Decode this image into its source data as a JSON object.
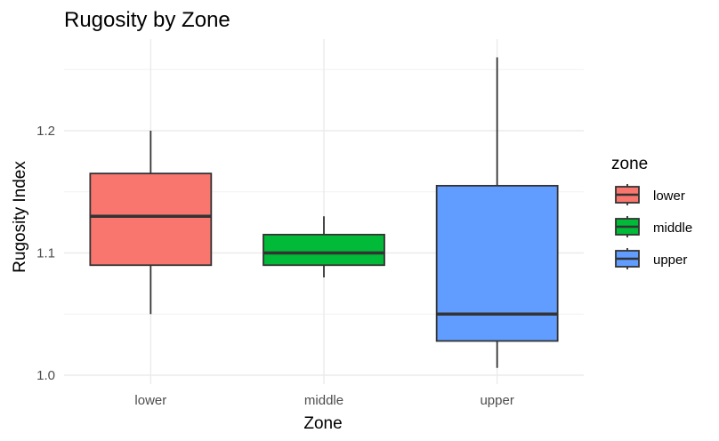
{
  "chart_data": {
    "type": "boxplot",
    "title": "Rugosity by Zone",
    "xlabel": "Zone",
    "ylabel": "Rugosity Index",
    "ylim": [
      1.0,
      1.26
    ],
    "yticks": [
      1.0,
      1.1,
      1.2
    ],
    "yticks_minor": [
      1.05,
      1.15,
      1.25
    ],
    "categories": [
      "lower",
      "middle",
      "upper"
    ],
    "boxes": [
      {
        "name": "lower",
        "whisker_low": 1.05,
        "q1": 1.09,
        "median": 1.13,
        "q3": 1.165,
        "whisker_high": 1.2,
        "color": "#F8766D"
      },
      {
        "name": "middle",
        "whisker_low": 1.08,
        "q1": 1.09,
        "median": 1.1,
        "q3": 1.115,
        "whisker_high": 1.13,
        "color": "#00BA38"
      },
      {
        "name": "upper",
        "whisker_low": 1.006,
        "q1": 1.028,
        "median": 1.05,
        "q3": 1.155,
        "whisker_high": 1.26,
        "color": "#619CFF"
      }
    ],
    "legend": {
      "title": "zone",
      "placement": "right",
      "entries": [
        "lower",
        "middle",
        "upper"
      ]
    },
    "grid": true
  }
}
